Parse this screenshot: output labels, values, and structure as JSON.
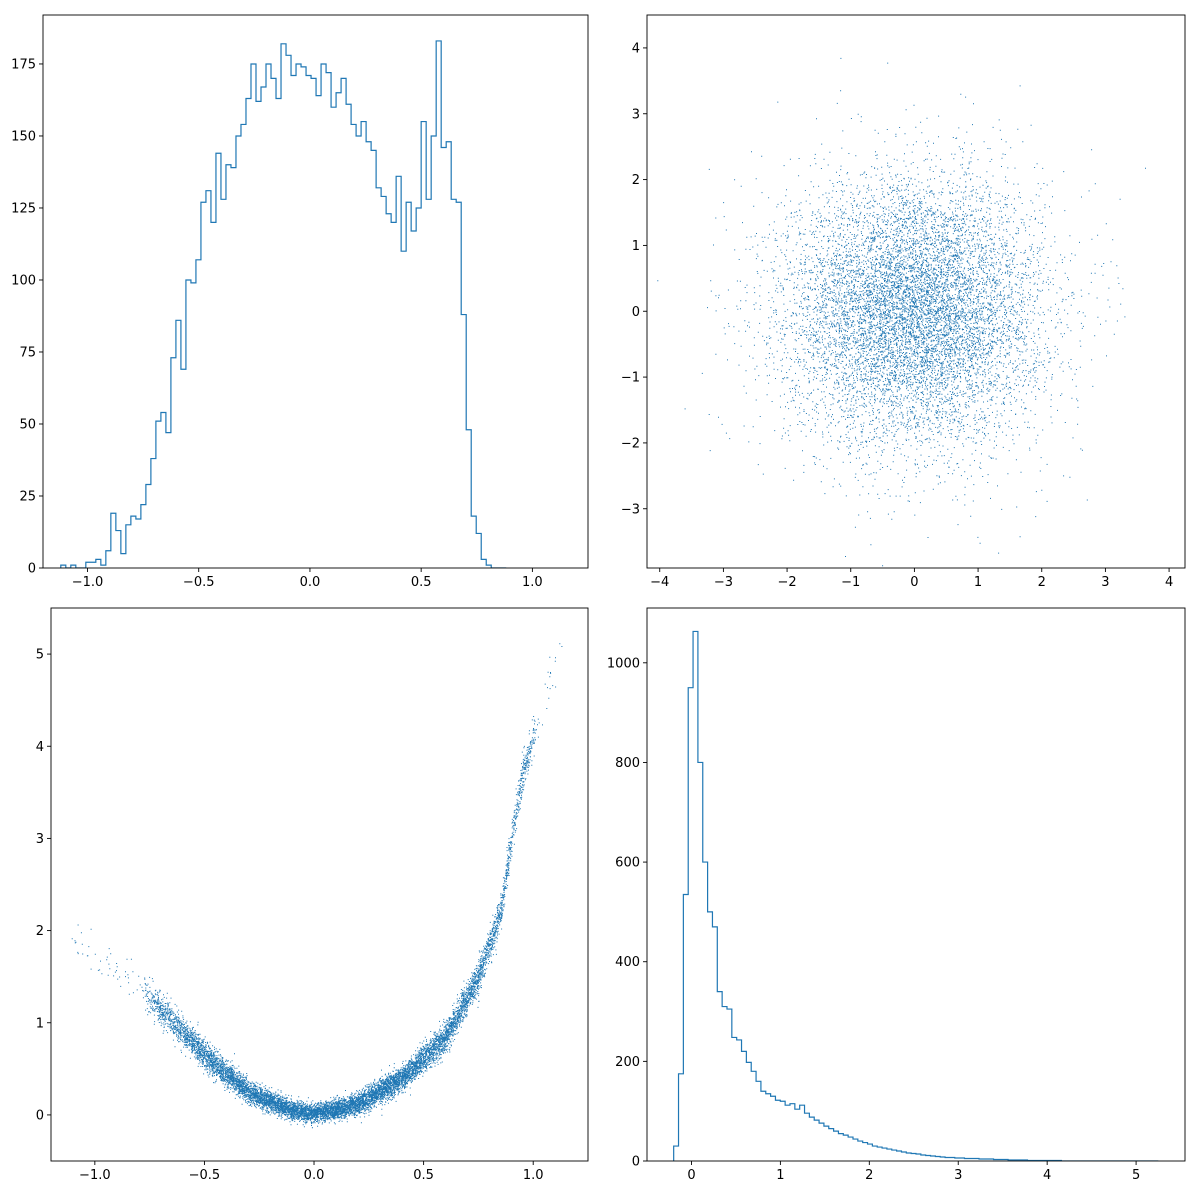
{
  "figure": {
    "series_color": "#1f77b4"
  },
  "chart_data": [
    {
      "type": "histogram",
      "position": "top-left",
      "title": "",
      "xlabel": "",
      "ylabel": "",
      "grid": false,
      "xlim": [
        -1.2,
        1.25
      ],
      "ylim": [
        0,
        192
      ],
      "xticks": [
        -1.0,
        -0.5,
        0.0,
        0.5,
        1.0
      ],
      "xtick_labels": [
        "−1.0",
        "−0.5",
        "0.0",
        "0.5",
        "1.0"
      ],
      "yticks": [
        0,
        25,
        50,
        75,
        100,
        125,
        150,
        175
      ],
      "ytick_labels": [
        "0",
        "25",
        "50",
        "75",
        "100",
        "125",
        "150",
        "175"
      ],
      "bin_start": -1.12,
      "bin_width": 0.0225,
      "counts": [
        1,
        0,
        1,
        0,
        0,
        2,
        2,
        3,
        1,
        6,
        19,
        13,
        5,
        15,
        18,
        17,
        22,
        29,
        38,
        51,
        54,
        47,
        73,
        86,
        69,
        100,
        99,
        107,
        127,
        131,
        120,
        144,
        128,
        140,
        139,
        150,
        154,
        163,
        175,
        162,
        167,
        175,
        170,
        163,
        182,
        178,
        171,
        175,
        174,
        171,
        170,
        164,
        175,
        172,
        160,
        165,
        170,
        161,
        154,
        150,
        155,
        148,
        145,
        132,
        129,
        123,
        120,
        136,
        110,
        127,
        117,
        125,
        155,
        128,
        150,
        183,
        146,
        148,
        128,
        127,
        88,
        48,
        18,
        12,
        3,
        1,
        0,
        0,
        0
      ],
      "bin_end_line": 1.15
    },
    {
      "type": "scatter",
      "position": "top-right",
      "title": "",
      "xlabel": "",
      "ylabel": "",
      "grid": false,
      "xlim": [
        -4.2,
        4.25
      ],
      "ylim": [
        -3.9,
        4.5
      ],
      "xticks": [
        -4,
        -3,
        -2,
        -1,
        0,
        1,
        2,
        3,
        4
      ],
      "xtick_labels": [
        "−4",
        "−3",
        "−2",
        "−1",
        "0",
        "1",
        "2",
        "3",
        "4"
      ],
      "yticks": [
        -3,
        -2,
        -1,
        0,
        1,
        2,
        3,
        4
      ],
      "ytick_labels": [
        "−3",
        "−2",
        "−1",
        "0",
        "1",
        "2",
        "3",
        "4"
      ],
      "distribution": {
        "kind": "bivariate-normal",
        "n_points": 10000,
        "x_mean": 0,
        "x_std": 1,
        "y_mean": 0,
        "y_std": 1
      }
    },
    {
      "type": "scatter",
      "position": "bottom-left",
      "title": "",
      "xlabel": "",
      "ylabel": "",
      "grid": false,
      "xlim": [
        -1.2,
        1.25
      ],
      "ylim": [
        -0.5,
        5.5
      ],
      "xticks": [
        -1.0,
        -0.5,
        0.0,
        0.5,
        1.0
      ],
      "xtick_labels": [
        "−1.0",
        "−0.5",
        "0.0",
        "0.5",
        "1.0"
      ],
      "yticks": [
        0,
        1,
        2,
        3,
        4,
        5
      ],
      "ytick_labels": [
        "0",
        "1",
        "2",
        "3",
        "4",
        "5"
      ],
      "distribution": {
        "kind": "curve-with-noise",
        "n_points": 10000,
        "x_min": -1.12,
        "x_max": 1.15,
        "curve_points": [
          [
            -1.1,
            1.9
          ],
          [
            -0.8,
            1.4
          ],
          [
            -0.5,
            0.65
          ],
          [
            -0.3,
            0.25
          ],
          [
            -0.1,
            0.05
          ],
          [
            0.0,
            0.02
          ],
          [
            0.2,
            0.12
          ],
          [
            0.4,
            0.4
          ],
          [
            0.6,
            0.85
          ],
          [
            0.75,
            1.5
          ],
          [
            0.85,
            2.2
          ],
          [
            0.9,
            3.0
          ],
          [
            0.95,
            3.7
          ],
          [
            1.05,
            4.5
          ],
          [
            1.15,
            5.3
          ]
        ],
        "noise_std": 0.05
      }
    },
    {
      "type": "histogram",
      "position": "bottom-right",
      "title": "",
      "xlabel": "",
      "ylabel": "",
      "grid": false,
      "xlim": [
        -0.5,
        5.55
      ],
      "ylim": [
        0,
        1110
      ],
      "xticks": [
        0,
        1,
        2,
        3,
        4,
        5
      ],
      "xtick_labels": [
        "0",
        "1",
        "2",
        "3",
        "4",
        "5"
      ],
      "yticks": [
        0,
        200,
        400,
        600,
        800,
        1000
      ],
      "ytick_labels": [
        "0",
        "200",
        "400",
        "600",
        "800",
        "1000"
      ],
      "bin_start": -0.2,
      "bin_width": 0.0545,
      "counts": [
        30,
        175,
        535,
        950,
        1063,
        800,
        600,
        500,
        470,
        340,
        310,
        305,
        248,
        243,
        220,
        198,
        180,
        160,
        140,
        135,
        130,
        122,
        120,
        112,
        115,
        104,
        112,
        96,
        88,
        82,
        76,
        70,
        65,
        60,
        55,
        52,
        48,
        44,
        40,
        37,
        34,
        30,
        28,
        26,
        24,
        22,
        20,
        18,
        16,
        15,
        14,
        12,
        11,
        10,
        9,
        8,
        7,
        7,
        6,
        6,
        5,
        5,
        5,
        4,
        4,
        4,
        3,
        3,
        3,
        2,
        2,
        2,
        2,
        1,
        1,
        1,
        1,
        1,
        1,
        1,
        0,
        0,
        0,
        0,
        0,
        0,
        0,
        0,
        0,
        0,
        0,
        0,
        0,
        0,
        0,
        0,
        0,
        0,
        0,
        0
      ]
    }
  ]
}
